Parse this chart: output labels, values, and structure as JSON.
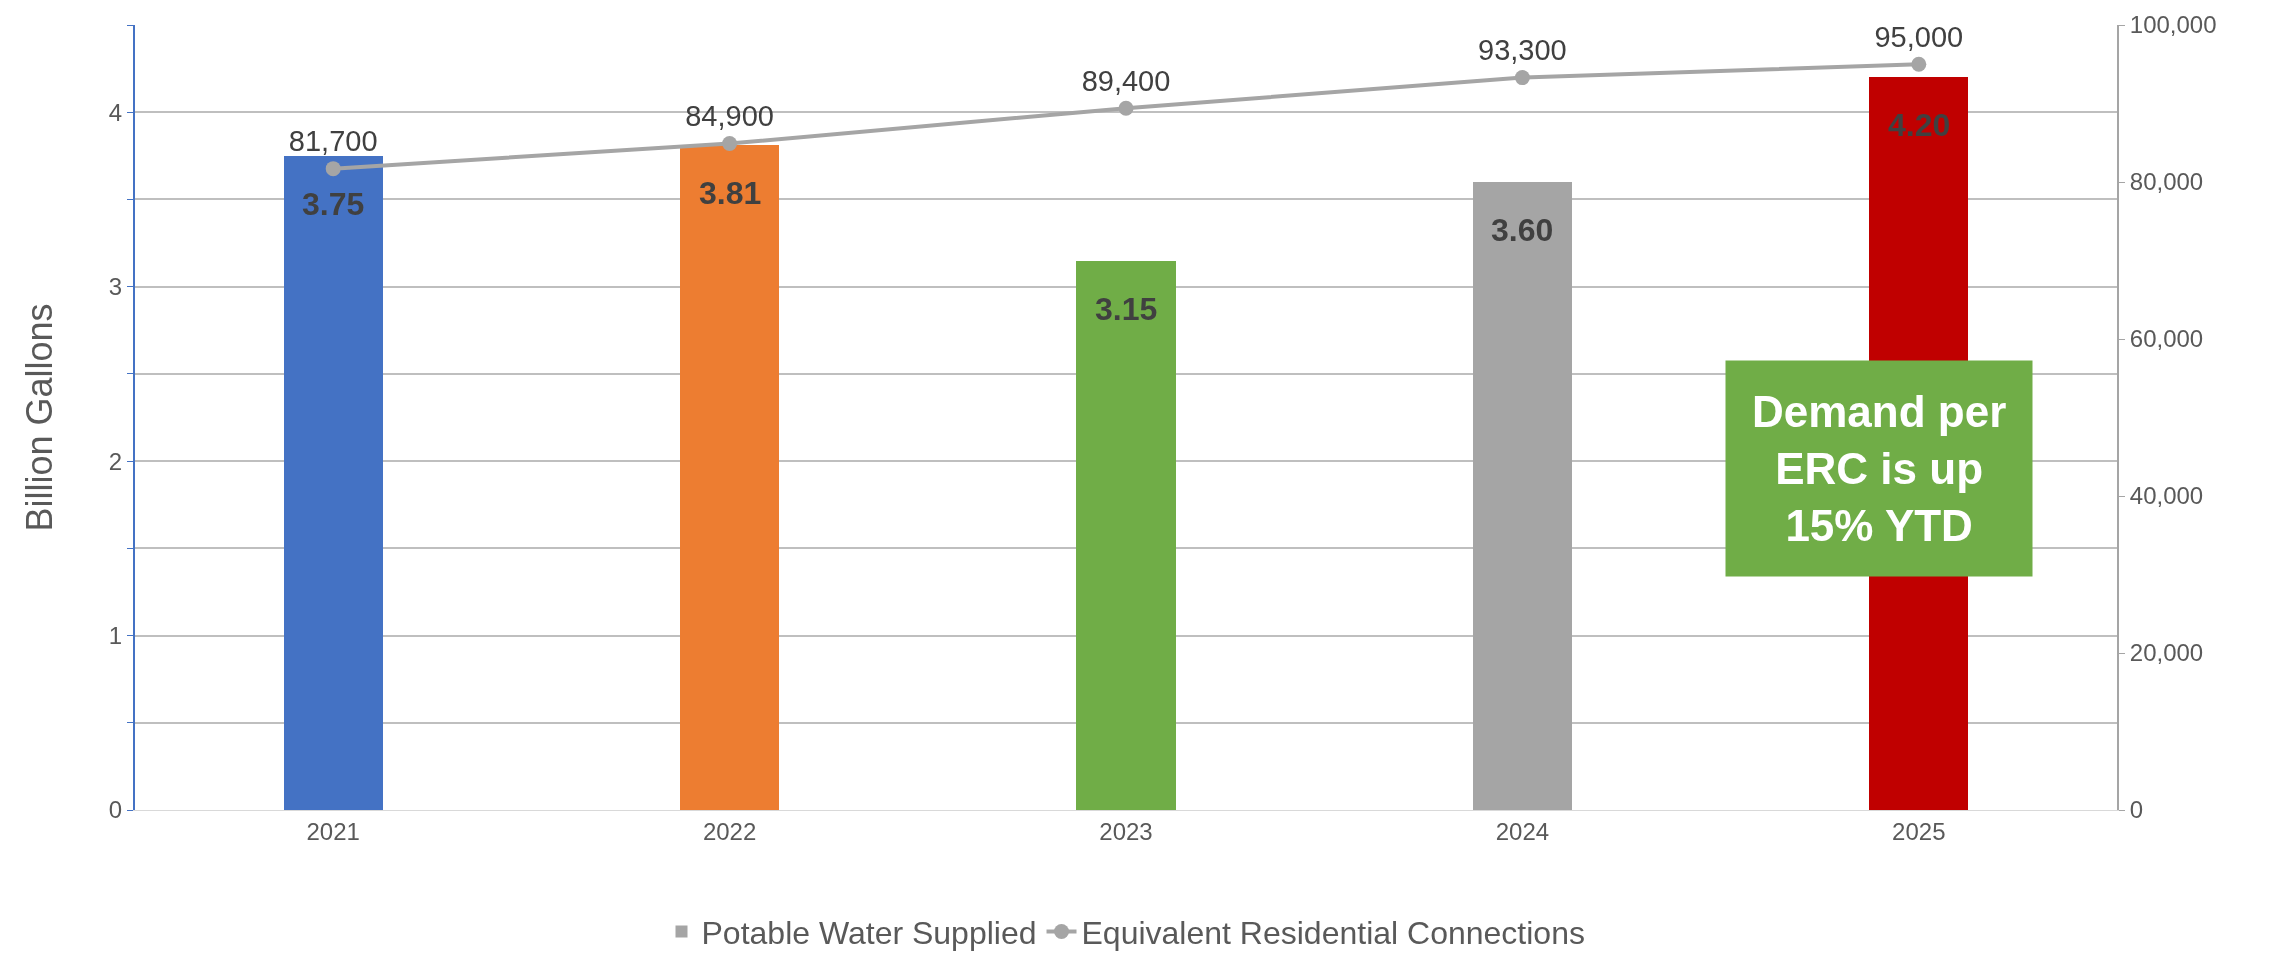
{
  "chart_data": {
    "type": "bar",
    "categories": [
      "2021",
      "2022",
      "2023",
      "2024",
      "2025"
    ],
    "ylabel": "Billion Gallons",
    "series": [
      {
        "name": "Potable Water Supplied",
        "color": "#a5a5a5",
        "colors": [
          "#4472c4",
          "#ed7d31",
          "#70ad47",
          "#a5a5a5",
          "#c00000"
        ],
        "values": [
          3.75,
          3.81,
          3.15,
          3.6,
          4.2
        ],
        "value_labels": [
          "3.75",
          "3.81",
          "3.15",
          "3.60",
          "4.20"
        ]
      },
      {
        "name": "Equivalent Residential Connections",
        "type": "line",
        "axis": "y2",
        "color": "#a5a5a5",
        "marker": "circle",
        "values": [
          81700,
          84900,
          89400,
          93300,
          95000
        ],
        "value_labels": [
          "81,700",
          "84,900",
          "89,400",
          "93,300",
          "95,000"
        ]
      }
    ],
    "ylim": [
      0,
      4.5
    ],
    "yticks": [
      0,
      {
        "value": 0.5,
        "label": null
      },
      1,
      {
        "value": 1.5,
        "label": null
      },
      2,
      {
        "value": 2.5,
        "label": null
      },
      3,
      {
        "value": 3.5,
        "label": null
      },
      4,
      {
        "value": 4.5,
        "label": null
      }
    ],
    "y2lim": [
      0,
      100000
    ],
    "y2ticks": [
      {
        "value": 0,
        "label": "0"
      },
      {
        "value": 20000,
        "label": "20,000"
      },
      {
        "value": 40000,
        "label": "40,000"
      },
      {
        "value": 60000,
        "label": "60,000"
      },
      {
        "value": 80000,
        "label": "80,000"
      },
      {
        "value": 100000,
        "label": "100,000"
      }
    ],
    "grid": "y",
    "legend": "bottom",
    "annotations": [
      "Demand per ERC is up 15% YTD"
    ]
  }
}
